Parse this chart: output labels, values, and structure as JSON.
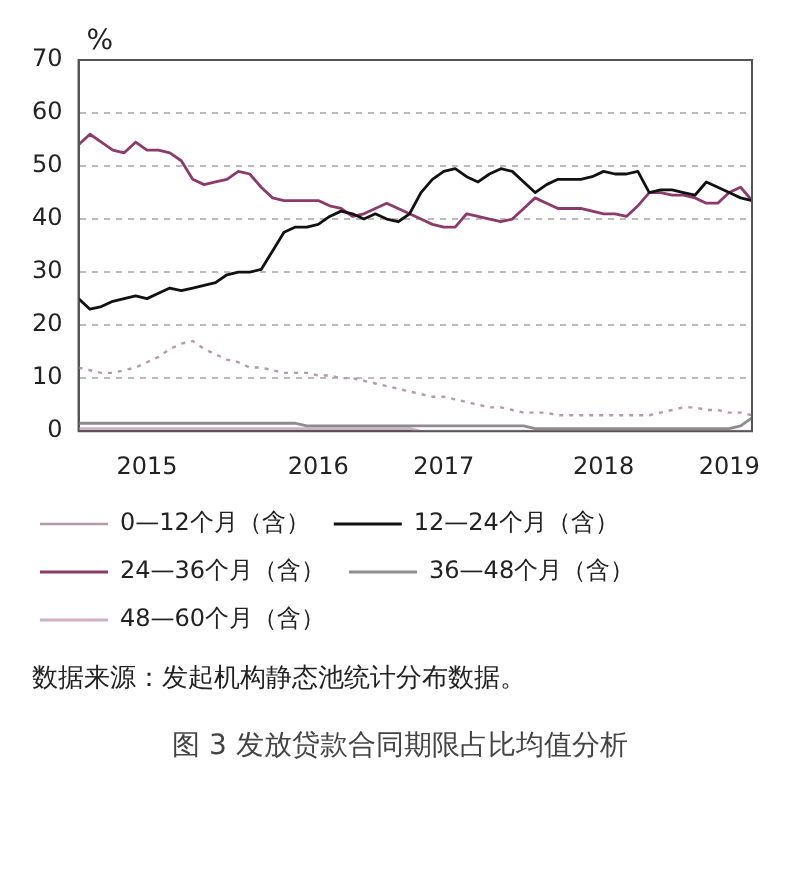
{
  "chart_data": {
    "type": "line",
    "title": "图 3  发放贷款合同期限占比均值分析",
    "ylabel": "%",
    "categories": [
      null,
      null,
      null,
      null,
      null,
      null,
      "2015",
      null,
      null,
      null,
      null,
      null,
      null,
      null,
      null,
      null,
      null,
      null,
      null,
      null,
      null,
      "2016",
      null,
      null,
      null,
      null,
      null,
      null,
      null,
      null,
      null,
      null,
      "2017",
      null,
      null,
      null,
      null,
      null,
      null,
      null,
      null,
      null,
      null,
      null,
      null,
      null,
      "2018",
      null,
      null,
      null,
      null,
      null,
      null,
      null,
      null,
      null,
      null,
      "2019",
      null,
      null
    ],
    "series": [
      {
        "name": "0—12个月（含）",
        "color": "#b59aab",
        "line_style": "dotted",
        "values": [
          12,
          11.5,
          11,
          11,
          11.5,
          12,
          13,
          14,
          15.5,
          16.5,
          17,
          15.5,
          14.5,
          13.5,
          13,
          12,
          12,
          11.5,
          11,
          11,
          11,
          10.5,
          10.5,
          10,
          10,
          9.5,
          9,
          8.5,
          8,
          7.5,
          7,
          6.5,
          6.5,
          6,
          5.5,
          5,
          4.5,
          4.5,
          4,
          3.5,
          3.5,
          3.5,
          3,
          3,
          3,
          3,
          3,
          3,
          3,
          3,
          3,
          3.5,
          4,
          4.5,
          4.5,
          4,
          4,
          3.5,
          3.5,
          3
        ]
      },
      {
        "name": "12—24个月（含）",
        "color": "#111111",
        "line_style": "solid",
        "values": [
          25,
          23,
          23.5,
          24.5,
          25,
          25.5,
          25,
          26,
          27,
          26.5,
          27,
          27.5,
          28,
          29.5,
          30,
          30,
          30.5,
          34,
          37.5,
          38.5,
          38.5,
          39,
          40.5,
          41.5,
          41,
          40,
          41,
          40,
          39.5,
          41,
          45,
          47.5,
          49,
          49.5,
          48,
          47,
          48.5,
          49.5,
          49,
          47,
          45,
          46.5,
          47.5,
          47.5,
          47.5,
          48,
          49,
          48.5,
          48.5,
          49,
          45,
          45.5,
          45.5,
          45,
          44.5,
          47,
          46,
          45,
          44,
          43.5
        ]
      },
      {
        "name": "24—36个月（含）",
        "color": "#8b3a6b",
        "line_style": "solid",
        "values": [
          54,
          56,
          54.5,
          53,
          52.5,
          54.5,
          53,
          53,
          52.5,
          51,
          47.5,
          46.5,
          47,
          47.5,
          49,
          48.5,
          46,
          44,
          43.5,
          43.5,
          43.5,
          43.5,
          42.5,
          42,
          40.5,
          41,
          42,
          43,
          42,
          41,
          40,
          39,
          38.5,
          38.5,
          41,
          40.5,
          40,
          39.5,
          40,
          42,
          44,
          43,
          42,
          42,
          42,
          41.5,
          41,
          41,
          40.5,
          42.5,
          45,
          45,
          44.5,
          44.5,
          44,
          43,
          43,
          45,
          46,
          43.5
        ]
      },
      {
        "name": "36—48个月（含）",
        "color": "#8c8c8c",
        "line_style": "solid",
        "values": [
          1.5,
          1.5,
          1.5,
          1.5,
          1.5,
          1.5,
          1.5,
          1.5,
          1.5,
          1.5,
          1.5,
          1.5,
          1.5,
          1.5,
          1.5,
          1.5,
          1.5,
          1.5,
          1.5,
          1.5,
          1,
          1,
          1,
          1,
          1,
          1,
          1,
          1,
          1,
          1,
          1,
          1,
          1,
          1,
          1,
          1,
          1,
          1,
          1,
          1,
          0.5,
          0.5,
          0.5,
          0.5,
          0.5,
          0.5,
          0.5,
          0.5,
          0.5,
          0.5,
          0.5,
          0.5,
          0.5,
          0.5,
          0.5,
          0.5,
          0.5,
          0.5,
          1,
          2.5
        ]
      },
      {
        "name": "48—60个月（含）",
        "color": "#cfb0c6",
        "line_style": "solid",
        "values": [
          0.5,
          0.5,
          0.5,
          0.5,
          0.5,
          0.5,
          0.5,
          0.5,
          0.5,
          0.5,
          0.5,
          0.5,
          0.5,
          0.5,
          0.5,
          0.5,
          0.5,
          0.5,
          0.5,
          0.5,
          0.5,
          0.5,
          0.5,
          0.5,
          0.5,
          0.5,
          0.5,
          0.5,
          0.5,
          0.5,
          0,
          0,
          0,
          0,
          0,
          0,
          0,
          0,
          0,
          0,
          0,
          0,
          0,
          0,
          0,
          0,
          0,
          0,
          0,
          0,
          0,
          0,
          0,
          0,
          0,
          0,
          0,
          0,
          0,
          0
        ]
      }
    ],
    "ylim": [
      0,
      70
    ],
    "yticks": [
      0,
      10,
      20,
      30,
      40,
      50,
      60,
      70
    ],
    "grid": "y",
    "legend": "bottom",
    "marker": "none",
    "annotations": [
      "数据来源：发起机构静态池统计分布数据。"
    ]
  }
}
